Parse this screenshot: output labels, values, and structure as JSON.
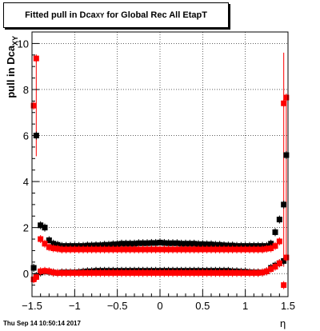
{
  "title": {
    "prefix": "Fitted pull in Dca",
    "sub": "XY",
    "suffix": " for Global Rec All EtapT"
  },
  "timestamp": "Thu Sep 14 10:50:14 2017",
  "ylabel": {
    "prefix": "pull in Dca",
    "sub": "XY"
  },
  "xlabel": "η",
  "colors": {
    "black_series": "#000000",
    "red_series": "#ff0000",
    "grid": "#000000"
  },
  "chart_data": {
    "type": "scatter",
    "xlim": [
      -1.5,
      1.5
    ],
    "ylim": [
      -1.0,
      10.5
    ],
    "grid": true,
    "xticks": [
      "−1.5",
      "−1",
      "−0.5",
      "0",
      "0.5",
      "1",
      "1.5"
    ],
    "yticks": [
      "0",
      "2",
      "4",
      "6",
      "8",
      "10"
    ],
    "series": [
      {
        "key": "black_width",
        "color": "#000000",
        "x": [
          -1.45,
          -1.4,
          -1.35,
          -1.3,
          -1.25,
          -1.2,
          -1.15,
          -1.1,
          -1.05,
          -1.0,
          -0.95,
          -0.9,
          -0.85,
          -0.8,
          -0.75,
          -0.7,
          -0.65,
          -0.6,
          -0.55,
          -0.5,
          -0.45,
          -0.4,
          -0.35,
          -0.3,
          -0.25,
          -0.2,
          -0.15,
          -0.1,
          -0.05,
          0.0,
          0.05,
          0.1,
          0.15,
          0.2,
          0.25,
          0.3,
          0.35,
          0.4,
          0.45,
          0.5,
          0.55,
          0.6,
          0.65,
          0.7,
          0.75,
          0.8,
          0.85,
          0.9,
          0.95,
          1.0,
          1.05,
          1.1,
          1.15,
          1.2,
          1.25,
          1.3,
          1.35,
          1.4,
          1.45
        ],
        "y": [
          6.0,
          2.1,
          2.0,
          1.45,
          1.3,
          1.25,
          1.2,
          1.2,
          1.2,
          1.2,
          1.2,
          1.2,
          1.22,
          1.22,
          1.23,
          1.23,
          1.25,
          1.25,
          1.27,
          1.28,
          1.3,
          1.3,
          1.3,
          1.3,
          1.32,
          1.32,
          1.32,
          1.33,
          1.33,
          1.35,
          1.33,
          1.32,
          1.32,
          1.32,
          1.3,
          1.3,
          1.3,
          1.3,
          1.28,
          1.28,
          1.27,
          1.27,
          1.25,
          1.25,
          1.23,
          1.22,
          1.22,
          1.2,
          1.2,
          1.2,
          1.2,
          1.2,
          1.2,
          1.2,
          1.2,
          1.3,
          1.8,
          2.35,
          3.0
        ],
        "extra": [
          {
            "x": 1.48,
            "y": 5.15
          }
        ]
      },
      {
        "key": "black_mean",
        "color": "#000000",
        "x": [
          -1.48,
          -1.45,
          -1.4,
          -1.35,
          -1.3,
          -1.25,
          -1.2,
          -1.15,
          -1.1,
          -1.05,
          -1.0,
          -0.95,
          -0.9,
          -0.85,
          -0.8,
          -0.75,
          -0.7,
          -0.65,
          -0.6,
          -0.55,
          -0.5,
          -0.45,
          -0.4,
          -0.35,
          -0.3,
          -0.25,
          -0.2,
          -0.15,
          -0.1,
          -0.05,
          0.0,
          0.05,
          0.1,
          0.15,
          0.2,
          0.25,
          0.3,
          0.35,
          0.4,
          0.45,
          0.5,
          0.55,
          0.6,
          0.65,
          0.7,
          0.75,
          0.8,
          0.85,
          0.9,
          0.95,
          1.0,
          1.05,
          1.1,
          1.15,
          1.2,
          1.25,
          1.3,
          1.35,
          1.4,
          1.45
        ],
        "y": [
          0.25,
          -0.1,
          0.05,
          0.1,
          0.08,
          0.05,
          0.03,
          0.05,
          0.05,
          0.05,
          0.05,
          0.06,
          0.08,
          0.1,
          0.1,
          0.12,
          0.12,
          0.12,
          0.12,
          0.12,
          0.12,
          0.12,
          0.12,
          0.12,
          0.12,
          0.12,
          0.12,
          0.12,
          0.12,
          0.12,
          0.12,
          0.12,
          0.12,
          0.12,
          0.12,
          0.12,
          0.12,
          0.12,
          0.12,
          0.12,
          0.12,
          0.12,
          0.12,
          0.12,
          0.12,
          0.12,
          0.12,
          0.1,
          0.1,
          0.08,
          0.08,
          0.06,
          0.05,
          0.05,
          0.05,
          0.1,
          0.25,
          0.35,
          0.45,
          0.55
        ]
      },
      {
        "key": "red_width",
        "color": "#ff0000",
        "x": [
          -1.48,
          -1.45,
          -1.4,
          -1.35,
          -1.3,
          -1.25,
          -1.2,
          -1.15,
          -1.1,
          -1.05,
          -1.0,
          -0.95,
          -0.9,
          -0.85,
          -0.8,
          -0.75,
          -0.7,
          -0.65,
          -0.6,
          -0.55,
          -0.5,
          -0.45,
          -0.4,
          -0.35,
          -0.3,
          -0.25,
          -0.2,
          -0.15,
          -0.1,
          -0.05,
          0.0,
          0.05,
          0.1,
          0.15,
          0.2,
          0.25,
          0.3,
          0.35,
          0.4,
          0.45,
          0.5,
          0.55,
          0.6,
          0.65,
          0.7,
          0.75,
          0.8,
          0.85,
          0.9,
          0.95,
          1.0,
          1.05,
          1.1,
          1.15,
          1.2,
          1.25,
          1.3,
          1.35,
          1.4,
          1.45,
          1.48
        ],
        "y": [
          7.3,
          9.35,
          1.5,
          1.3,
          1.15,
          1.1,
          1.08,
          1.05,
          1.05,
          1.05,
          1.05,
          1.05,
          1.05,
          1.05,
          1.05,
          1.05,
          1.05,
          1.05,
          1.05,
          1.05,
          1.05,
          1.05,
          1.05,
          1.05,
          1.05,
          1.05,
          1.05,
          1.05,
          1.05,
          1.05,
          1.05,
          1.05,
          1.05,
          1.05,
          1.05,
          1.05,
          1.05,
          1.05,
          1.05,
          1.05,
          1.05,
          1.05,
          1.05,
          1.05,
          1.05,
          1.05,
          1.05,
          1.05,
          1.05,
          1.05,
          1.05,
          1.05,
          1.05,
          1.05,
          1.05,
          1.08,
          1.1,
          1.2,
          1.4,
          7.4,
          7.65
        ]
      },
      {
        "key": "red_mean",
        "color": "#ff0000",
        "x": [
          -1.48,
          -1.45,
          -1.4,
          -1.35,
          -1.3,
          -1.25,
          -1.2,
          -1.15,
          -1.1,
          -1.05,
          -1.0,
          -0.95,
          -0.9,
          -0.85,
          -0.8,
          -0.75,
          -0.7,
          -0.65,
          -0.6,
          -0.55,
          -0.5,
          -0.45,
          -0.4,
          -0.35,
          -0.3,
          -0.25,
          -0.2,
          -0.15,
          -0.1,
          -0.05,
          0.0,
          0.05,
          0.1,
          0.15,
          0.2,
          0.25,
          0.3,
          0.35,
          0.4,
          0.45,
          0.5,
          0.55,
          0.6,
          0.65,
          0.7,
          0.75,
          0.8,
          0.85,
          0.9,
          0.95,
          1.0,
          1.05,
          1.1,
          1.15,
          1.2,
          1.25,
          1.3,
          1.35,
          1.4,
          1.45,
          1.48
        ],
        "y": [
          -0.25,
          -0.15,
          0.1,
          0.12,
          0.1,
          0.05,
          0.03,
          0.03,
          0.03,
          0.03,
          0.03,
          0.03,
          0.03,
          0.03,
          0.03,
          0.03,
          0.03,
          0.03,
          0.03,
          0.03,
          0.03,
          0.03,
          0.03,
          0.03,
          0.03,
          0.03,
          0.03,
          0.03,
          0.03,
          0.03,
          0.03,
          0.03,
          0.03,
          0.03,
          0.03,
          0.03,
          0.03,
          0.03,
          0.03,
          0.03,
          0.03,
          0.03,
          0.03,
          0.03,
          0.03,
          0.03,
          0.03,
          0.03,
          0.03,
          0.03,
          0.03,
          0.03,
          0.03,
          0.03,
          0.05,
          0.1,
          0.2,
          0.3,
          0.45,
          -0.5,
          0.7
        ],
        "errors": [
          {
            "x": -1.45,
            "low": 5.1,
            "high": 9.35
          },
          {
            "x": 1.45,
            "low": 0.3,
            "high": 9.6
          },
          {
            "x": 1.48,
            "low": 0.7,
            "high": 7.65
          }
        ]
      }
    ]
  }
}
